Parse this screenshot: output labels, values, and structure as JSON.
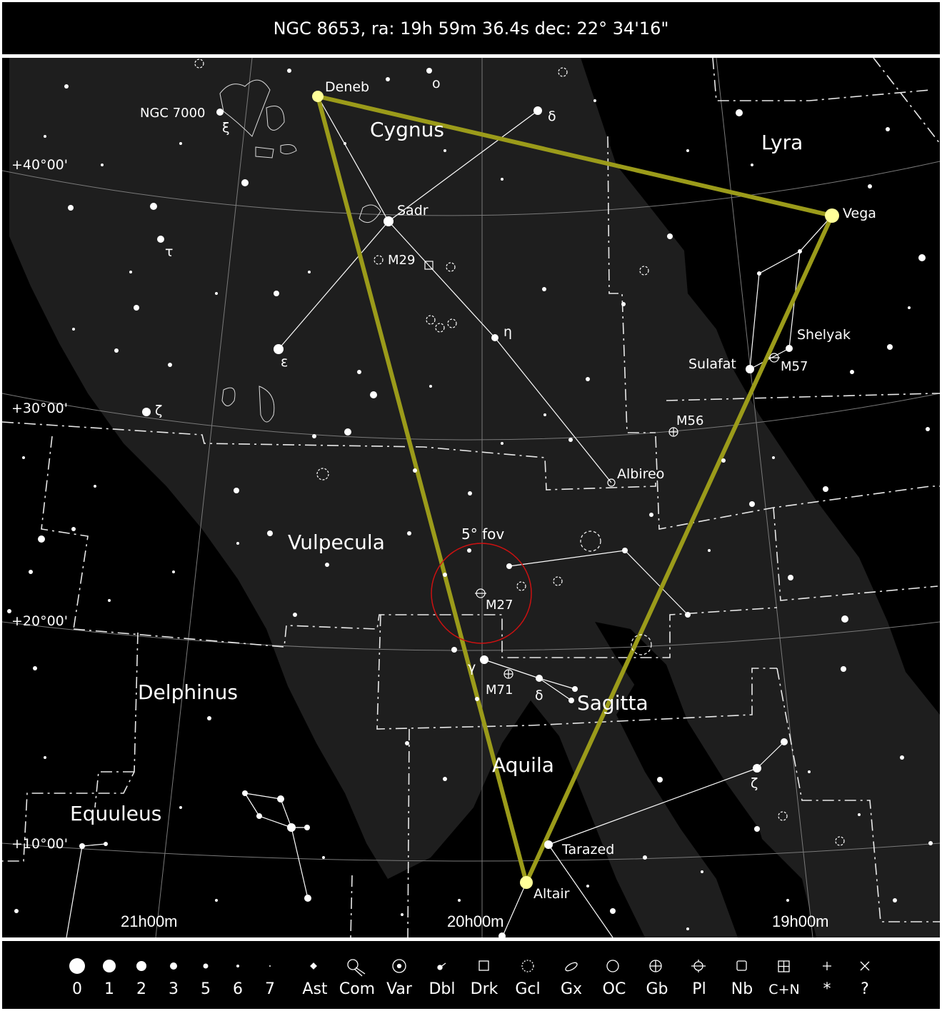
{
  "header": {
    "title": "NGC 8653, ra: 19h 59m 36.4s dec: 22° 34'16\""
  },
  "constellations": {
    "cygnus": "Cygnus",
    "lyra": "Lyra",
    "vulpecula": "Vulpecula",
    "delphinus": "Delphinus",
    "sagitta": "Sagitta",
    "aquila": "Aquila",
    "equuleus": "Equuleus"
  },
  "stars": {
    "deneb": "Deneb",
    "vega": "Vega",
    "altair": "Altair",
    "sadr": "Sadr",
    "albireo": "Albireo",
    "sulafat": "Sulafat",
    "shelyak": "Shelyak",
    "tarazed": "Tarazed",
    "delta_cyg": "δ",
    "omicron_cyg": "o",
    "eta_cyg": "η",
    "epsilon_cyg": "ε",
    "zeta_cyg": "ζ",
    "tau_cyg": "τ",
    "xi_cyg": "ξ",
    "gamma_sge": "γ",
    "delta_sge": "δ",
    "zeta_aql": "ζ"
  },
  "objects": {
    "ngc7000": "NGC 7000",
    "m29": "M29",
    "m56": "M56",
    "m57": "M57",
    "m27": "M27",
    "m71": "M71",
    "fov": "5° fov"
  },
  "dec_labels": {
    "d40": "+40°00'",
    "d30": "+30°00'",
    "d20": "+20°00'",
    "d10": "+10°00'"
  },
  "ra_labels": {
    "r21": "21h00m",
    "r20": "20h00m",
    "r19": "19h00m"
  },
  "colors": {
    "asterism": "#9b9b1a",
    "fov_circle": "#cc1111",
    "milky_way": "#1e1e1e",
    "background": "#000000",
    "highlight_star": "#ffff99"
  },
  "legend": {
    "magnitudes": [
      "0",
      "1",
      "2",
      "3",
      "5",
      "6",
      "7"
    ],
    "types": [
      "Ast",
      "Com",
      "Var",
      "Dbl",
      "Drk",
      "Gcl",
      "Gx",
      "OC",
      "Gb",
      "Pl",
      "Nb",
      "C+N",
      "*",
      "?"
    ]
  }
}
